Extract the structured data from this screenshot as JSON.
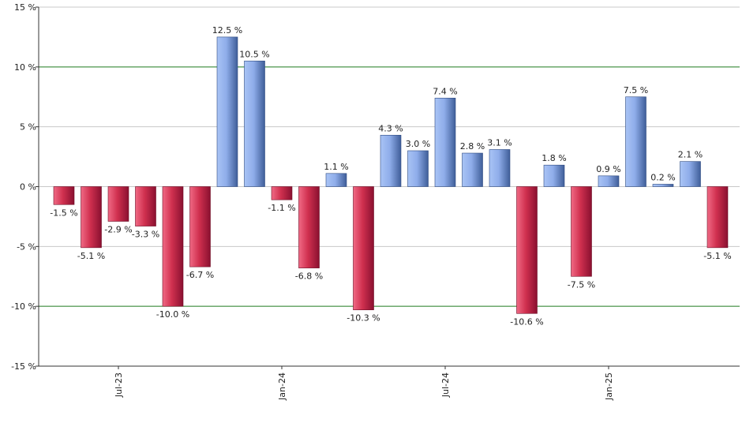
{
  "chart_data": {
    "type": "bar",
    "ylim": [
      -15,
      15
    ],
    "y_ticks": [
      15,
      10,
      5,
      0,
      -5,
      -10,
      -15
    ],
    "y_tick_labels": [
      "15 %",
      "10 %",
      "5 %",
      "0 %",
      "-5 %",
      "-10 %",
      "-15 %"
    ],
    "highlighted_gridlines": [
      10,
      -10
    ],
    "grid": true,
    "values": [
      -1.5,
      -5.1,
      -2.9,
      -3.3,
      -10.0,
      -6.7,
      12.5,
      10.5,
      -1.1,
      -6.8,
      1.1,
      -10.3,
      4.3,
      3.0,
      7.4,
      2.8,
      3.1,
      -10.6,
      1.8,
      -7.5,
      0.9,
      7.5,
      0.2,
      2.1,
      -5.1
    ],
    "value_labels": [
      "-1.5 %",
      "-5.1 %",
      "-2.9 %",
      "-3.3 %",
      "-10.0 %",
      "-6.7 %",
      "12.5 %",
      "10.5 %",
      "-1.1 %",
      "-6.8 %",
      "1.1 %",
      "-10.3 %",
      "4.3 %",
      "3.0 %",
      "7.4 %",
      "2.8 %",
      "3.1 %",
      "-10.6 %",
      "1.8 %",
      "-7.5 %",
      "0.9 %",
      "7.5 %",
      "0.2 %",
      "2.1 %",
      "-5.1 %"
    ],
    "x_tick_labels": [
      {
        "label": "Jul-23",
        "index": 2
      },
      {
        "label": "Jan-24",
        "index": 8
      },
      {
        "label": "Jul-24",
        "index": 14
      },
      {
        "label": "Jan-25",
        "index": 20
      }
    ],
    "colors": {
      "positive_light": "#a9c4f5",
      "positive_dark": "#3f5e99",
      "negative_light": "#f06a85",
      "negative_dark": "#8a1030",
      "grid": "#c8c8c8",
      "highlight_grid": "#1e7a1e",
      "axis": "#333333"
    }
  }
}
